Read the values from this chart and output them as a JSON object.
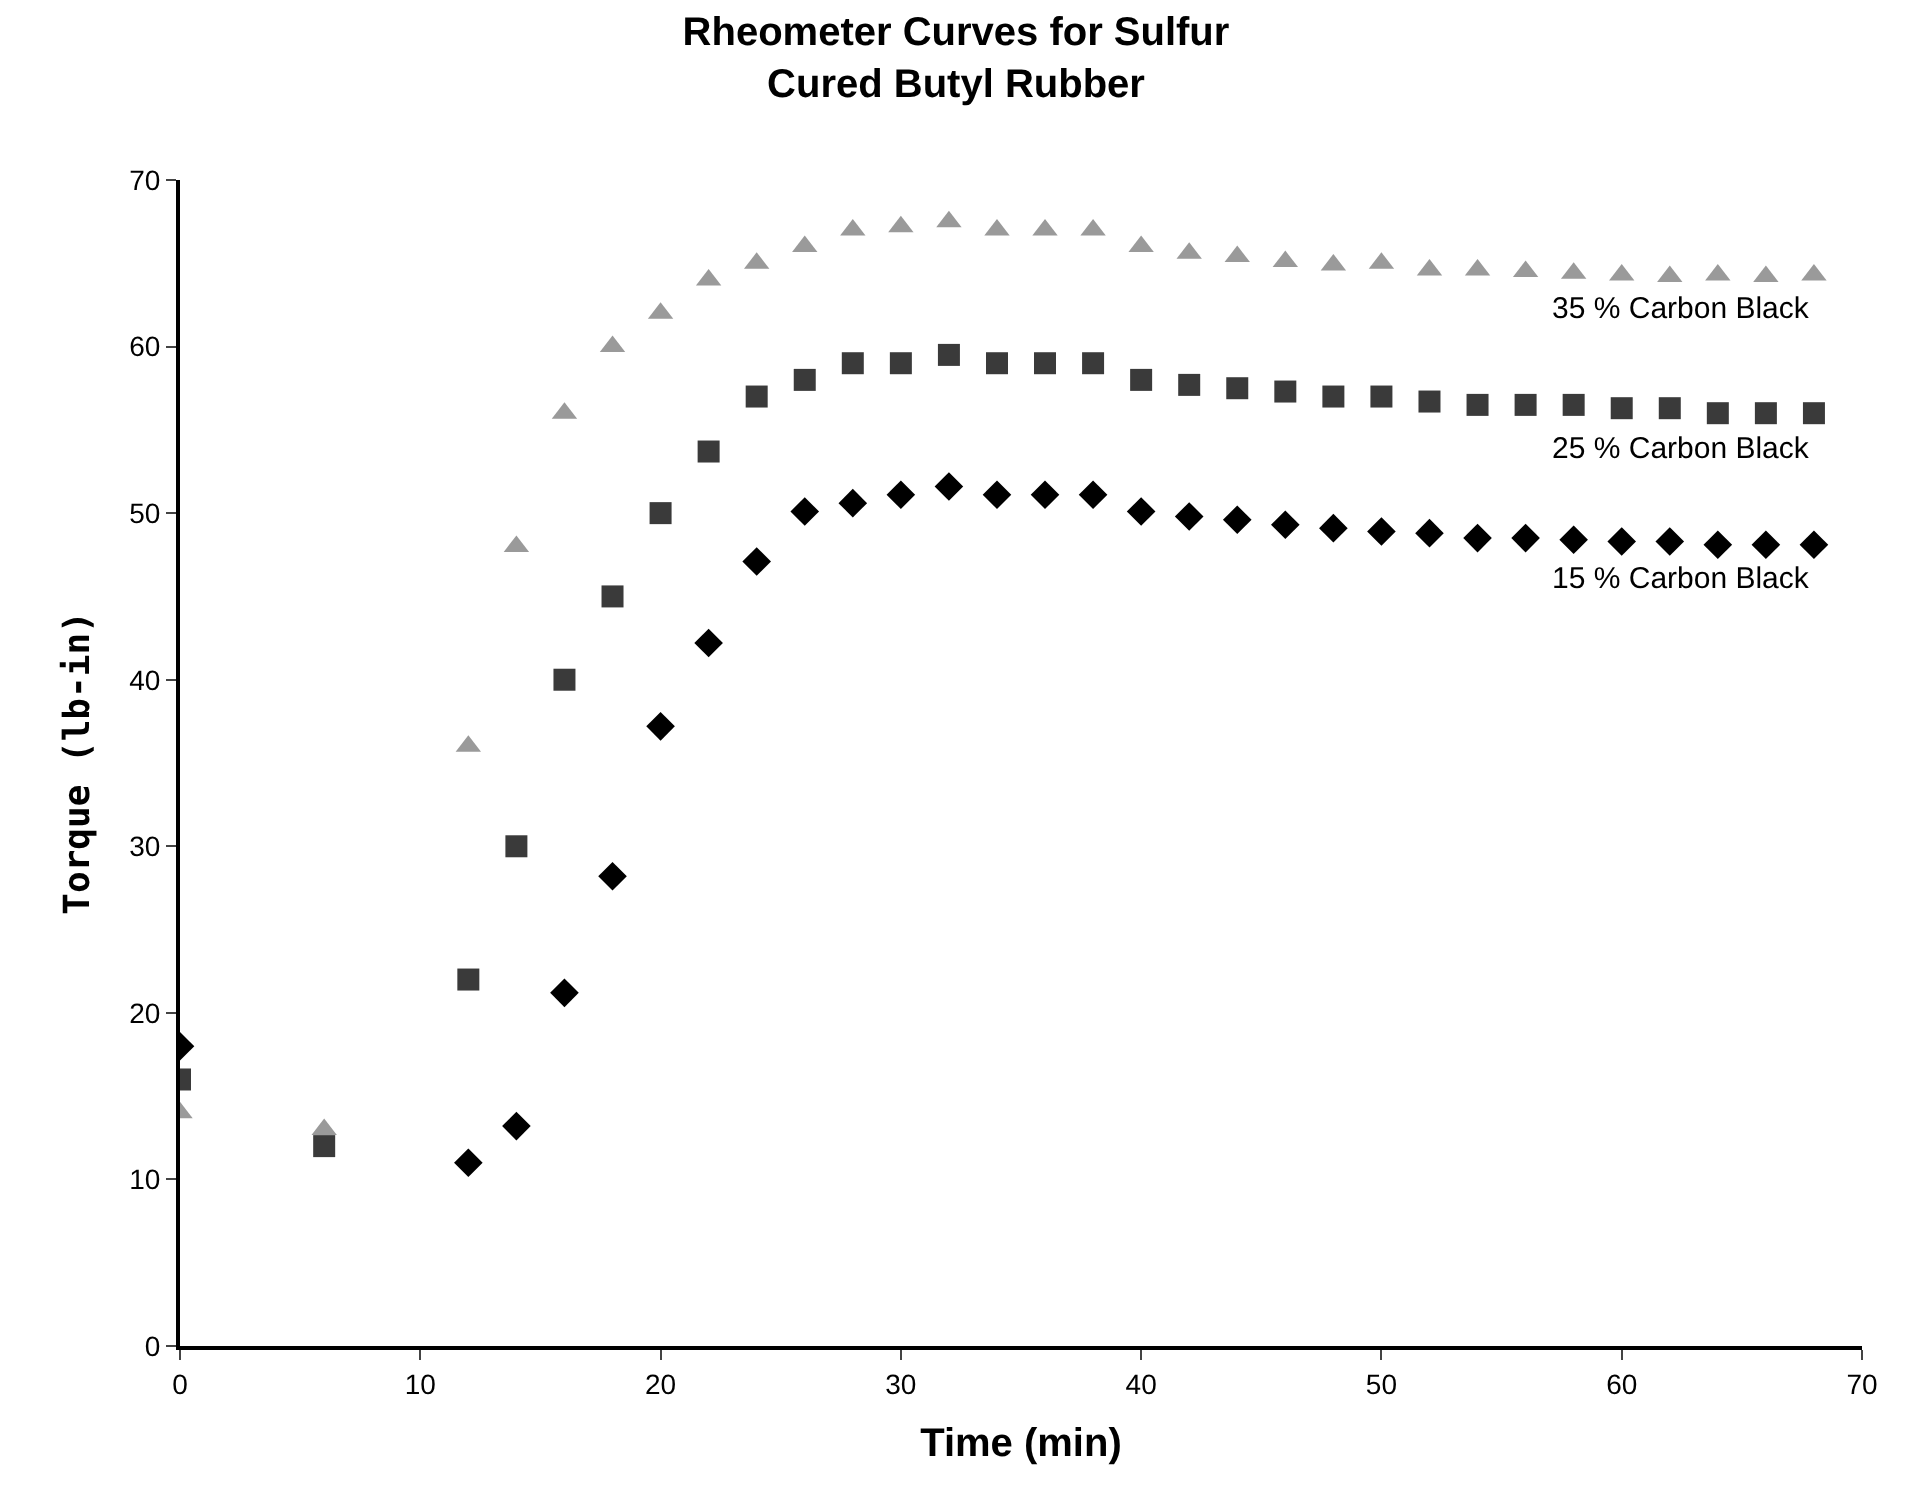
{
  "chart_data": {
    "type": "scatter",
    "title": "Rheometer Curves for Sulfur\nCured Butyl Rubber",
    "xlabel": "Time (min)",
    "ylabel": "Torque (lb-in)",
    "xlim": [
      0,
      70
    ],
    "xticks": [
      0,
      10,
      20,
      30,
      40,
      50,
      60,
      70
    ],
    "ylim": [
      0,
      70
    ],
    "yticks": [
      0,
      10,
      20,
      30,
      40,
      50,
      60,
      70
    ],
    "series": [
      {
        "name": "35 % Carbon Black",
        "color": "#9a9a9a",
        "marker": "triangle",
        "x": [
          0,
          6,
          12,
          14,
          16,
          18,
          20,
          22,
          24,
          26,
          28,
          30,
          32,
          34,
          36,
          38,
          40,
          42,
          44,
          46,
          48,
          50,
          52,
          54,
          56,
          58,
          60,
          62,
          64,
          66,
          68
        ],
        "values": [
          14,
          13,
          36,
          48,
          56,
          60,
          62,
          64,
          65,
          66,
          67,
          67.2,
          67.5,
          67,
          67,
          67,
          66,
          65.6,
          65.4,
          65.1,
          64.9,
          65,
          64.6,
          64.6,
          64.5,
          64.4,
          64.3,
          64.2,
          64.3,
          64.2,
          64.3
        ]
      },
      {
        "name": "25 % Carbon Black",
        "color": "#3a3a3a",
        "marker": "square",
        "x": [
          0,
          6,
          12,
          14,
          16,
          18,
          20,
          22,
          24,
          26,
          28,
          30,
          32,
          34,
          36,
          38,
          40,
          42,
          44,
          46,
          48,
          50,
          52,
          54,
          56,
          58,
          60,
          62,
          64,
          66,
          68
        ],
        "values": [
          16,
          12,
          22,
          30,
          40,
          45,
          50,
          53.7,
          57,
          58,
          59,
          59,
          59.5,
          59,
          59,
          59,
          58,
          57.7,
          57.5,
          57.3,
          57,
          57,
          56.7,
          56.5,
          56.5,
          56.5,
          56.3,
          56.3,
          56,
          56,
          56
        ]
      },
      {
        "name": "15 % Carbon Black",
        "color": "#000000",
        "marker": "diamond",
        "x": [
          0,
          12,
          14,
          16,
          18,
          20,
          22,
          24,
          26,
          28,
          30,
          32,
          34,
          36,
          38,
          40,
          42,
          44,
          46,
          48,
          50,
          52,
          54,
          56,
          58,
          60,
          62,
          64,
          66,
          68
        ],
        "values": [
          18,
          11,
          13.2,
          21.2,
          28.2,
          37.2,
          42.2,
          47.1,
          50.1,
          50.6,
          51.1,
          51.6,
          51.1,
          51.1,
          51.1,
          50.1,
          49.8,
          49.6,
          49.3,
          49.1,
          48.9,
          48.8,
          48.5,
          48.5,
          48.4,
          48.3,
          48.3,
          48.1,
          48.1,
          48.1
        ]
      }
    ]
  }
}
